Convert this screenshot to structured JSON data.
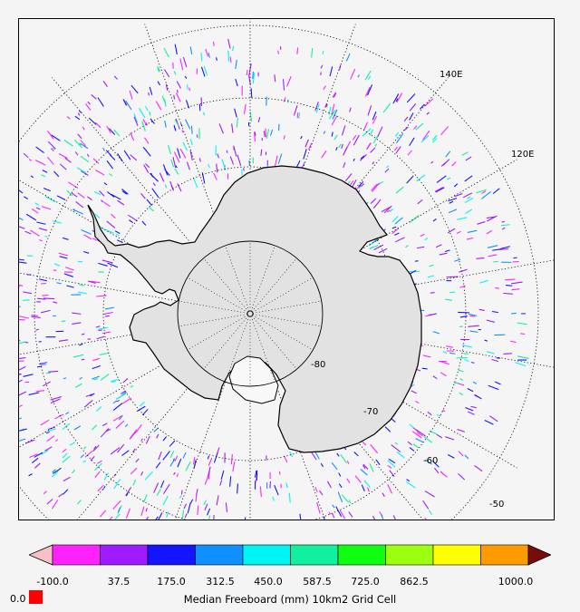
{
  "map": {
    "projection": "south-polar-stereographic",
    "lat_labels": [
      "-80",
      "-70",
      "-60",
      "-50"
    ],
    "lon_labels": [
      "140E",
      "120E"
    ]
  },
  "legend": {
    "title": "Median Freeboard (mm) 10km2 Grid Cell",
    "ticks": [
      "-100.0",
      "37.5",
      "175.0",
      "312.5",
      "450.0",
      "587.5",
      "725.0",
      "862.5",
      "1000.0"
    ],
    "underflow_color": "#f6c0c6",
    "overflow_color": "#7a0b0b",
    "colors": [
      "#ff22ff",
      "#9e1cff",
      "#1414ff",
      "#0f90ff",
      "#00f4f4",
      "#10f0a0",
      "#10ff10",
      "#9cff10",
      "#ffff00",
      "#ff9a00"
    ],
    "zero_label": "0.0",
    "zero_color": "#ff0000"
  }
}
